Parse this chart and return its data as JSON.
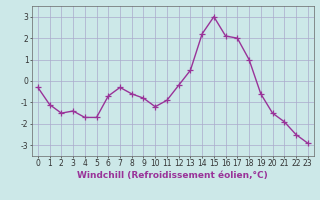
{
  "x": [
    0,
    1,
    2,
    3,
    4,
    5,
    6,
    7,
    8,
    9,
    10,
    11,
    12,
    13,
    14,
    15,
    16,
    17,
    18,
    19,
    20,
    21,
    22,
    23
  ],
  "y": [
    -0.3,
    -1.1,
    -1.5,
    -1.4,
    -1.7,
    -1.7,
    -0.7,
    -0.3,
    -0.6,
    -0.8,
    -1.2,
    -0.9,
    -0.2,
    0.5,
    2.2,
    3.0,
    2.1,
    2.0,
    1.0,
    -0.6,
    -1.5,
    -1.9,
    -2.5,
    -2.9
  ],
  "line_color": "#993399",
  "marker": "+",
  "markersize": 4,
  "linewidth": 1.0,
  "bg_color": "#cce8e8",
  "grid_color": "#aaaacc",
  "xlabel": "Windchill (Refroidissement éolien,°C)",
  "xlim": [
    -0.5,
    23.5
  ],
  "ylim": [
    -3.5,
    3.5
  ],
  "yticks": [
    -3,
    -2,
    -1,
    0,
    1,
    2,
    3
  ],
  "xticks": [
    0,
    1,
    2,
    3,
    4,
    5,
    6,
    7,
    8,
    9,
    10,
    11,
    12,
    13,
    14,
    15,
    16,
    17,
    18,
    19,
    20,
    21,
    22,
    23
  ],
  "tick_fontsize": 5.5,
  "label_fontsize": 6.5
}
